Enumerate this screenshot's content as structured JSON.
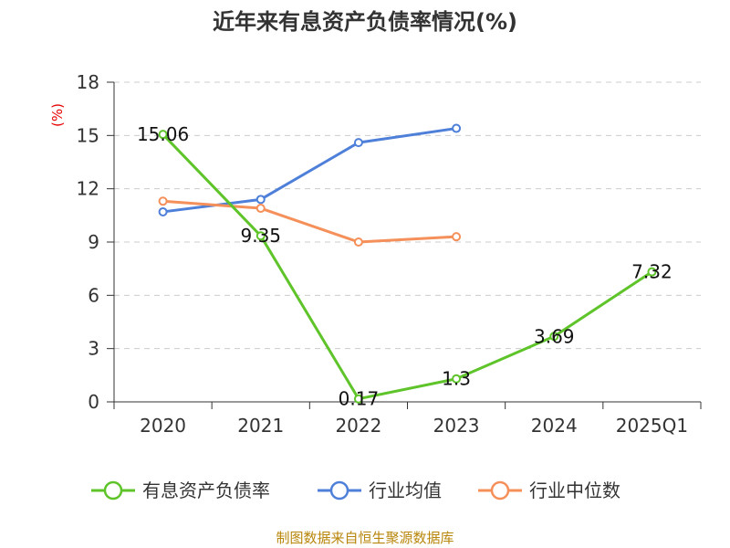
{
  "chart_data": {
    "type": "line",
    "title": "近年来有息资产负债率情况(%)",
    "ylabel": "(%)",
    "categories": [
      "2020",
      "2021",
      "2022",
      "2023",
      "2024",
      "2025Q1"
    ],
    "ylim": [
      0,
      18
    ],
    "yticks": [
      0,
      3,
      6,
      9,
      12,
      15,
      18
    ],
    "grid": true,
    "legend_position": "bottom",
    "series": [
      {
        "name": "有息资产负债率",
        "color": "#5ec42a",
        "values": [
          15.06,
          9.35,
          0.17,
          1.3,
          3.69,
          7.32
        ],
        "labels": [
          "15.06",
          "9.35",
          "0.17",
          "1.3",
          "3.69",
          "7.32"
        ]
      },
      {
        "name": "行业均值",
        "color": "#4e7fd9",
        "values": [
          10.7,
          11.4,
          14.6,
          15.4,
          null,
          null
        ]
      },
      {
        "name": "行业中位数",
        "color": "#f5905a",
        "values": [
          11.3,
          10.9,
          9.0,
          9.3,
          null,
          null
        ]
      }
    ]
  },
  "source": "制图数据来自恒生聚源数据库"
}
